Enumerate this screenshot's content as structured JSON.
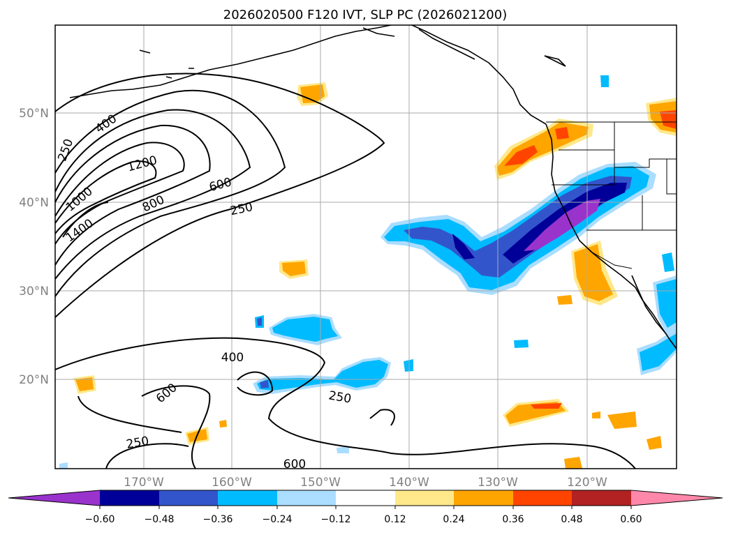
{
  "title": "2026020500 F120 IVT, SLP PC (2026021200)",
  "map": {
    "lat_labels": [
      "50°N",
      "40°N",
      "30°N",
      "20°N"
    ],
    "lon_labels": [
      "170°W",
      "160°W",
      "150°W",
      "140°W",
      "130°W",
      "120°W"
    ],
    "contour_labels": [
      "400",
      "250",
      "1200",
      "1000",
      "800",
      "600",
      "250",
      "1400",
      "400",
      "600",
      "250",
      "250",
      "600"
    ]
  },
  "colorbar": {
    "colors": [
      "#9933cc",
      "#000099",
      "#3355cc",
      "#00bbff",
      "#aaddff",
      "#ffffff",
      "#ffe88a",
      "#ffa500",
      "#ff4400",
      "#b22222",
      "#ff88aa"
    ],
    "tick_labels": [
      "−0.60",
      "−0.48",
      "−0.36",
      "−0.24",
      "−0.12",
      "0.12",
      "0.24",
      "0.36",
      "0.48",
      "0.60"
    ]
  }
}
